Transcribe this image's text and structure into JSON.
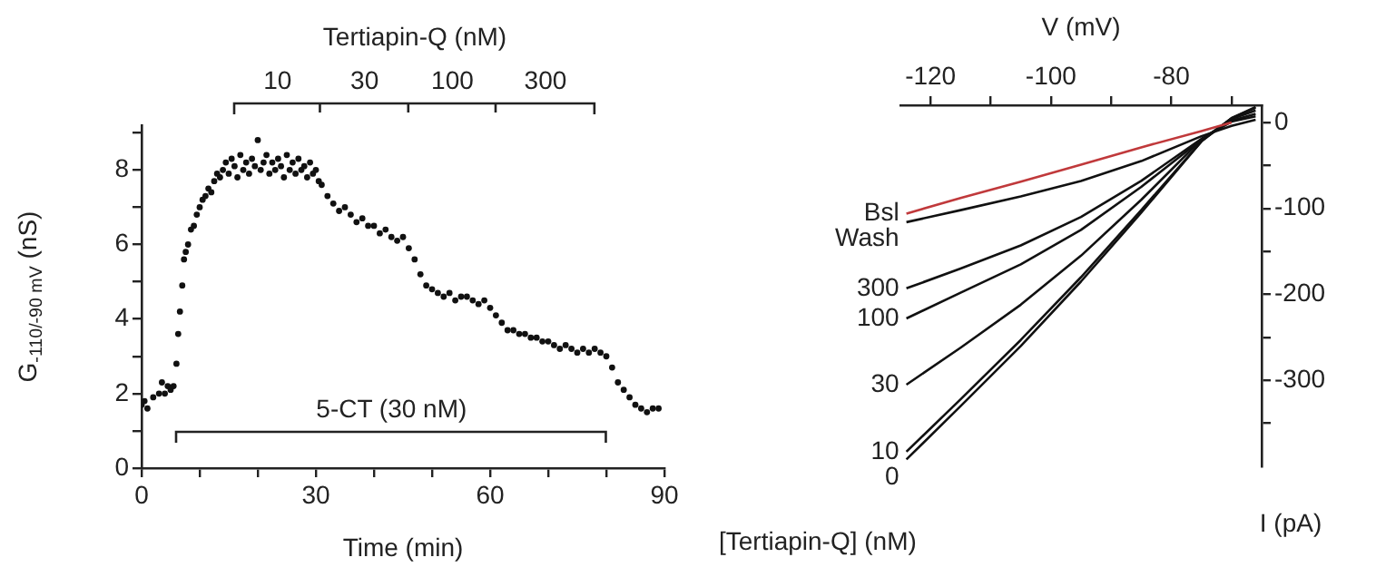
{
  "chart_data": [
    {
      "type": "scatter",
      "xlabel": "Time (min)",
      "ylabel": "G$_{-110/-90 mV}$ (nS)",
      "color": "#111111",
      "marker": "circle",
      "grid": false,
      "legend": false,
      "x": [
        0,
        0.5,
        1,
        2,
        3,
        3.5,
        4,
        4.5,
        5,
        5.5,
        6,
        6.3,
        6.6,
        7,
        7.3,
        7.6,
        8,
        8.5,
        9,
        9.5,
        10,
        10.5,
        11,
        11.5,
        12,
        12.5,
        13,
        13.5,
        14,
        14.5,
        15,
        15.5,
        16,
        16.5,
        17,
        17.5,
        18,
        18.5,
        19,
        19.5,
        20,
        20.5,
        21,
        21.5,
        22,
        22.5,
        23,
        23.5,
        24,
        24.5,
        25,
        25.5,
        26,
        26.5,
        27,
        27.5,
        28,
        28.5,
        29,
        29.5,
        30,
        30.5,
        31,
        32,
        33,
        34,
        35,
        36,
        37,
        38,
        39,
        40,
        41,
        42,
        43,
        44,
        45,
        46,
        47,
        48,
        49,
        50,
        51,
        52,
        53,
        54,
        55,
        56,
        57,
        58,
        59,
        60,
        61,
        62,
        63,
        64,
        65,
        66,
        67,
        68,
        69,
        70,
        71,
        72,
        73,
        74,
        75,
        76,
        77,
        78,
        79,
        80,
        81,
        82,
        83,
        84,
        85,
        86,
        87,
        88,
        89
      ],
      "values": [
        1.7,
        1.8,
        1.6,
        1.9,
        2.0,
        2.3,
        2.0,
        2.2,
        2.1,
        2.2,
        2.8,
        3.6,
        4.2,
        4.9,
        5.6,
        5.8,
        6.0,
        6.4,
        6.5,
        6.8,
        7.0,
        7.2,
        7.3,
        7.5,
        7.4,
        7.7,
        7.9,
        7.8,
        8.0,
        8.2,
        7.9,
        8.3,
        8.1,
        7.8,
        8.4,
        8.0,
        8.2,
        7.9,
        8.3,
        8.1,
        8.8,
        8.0,
        8.2,
        8.4,
        7.9,
        8.2,
        8.0,
        8.3,
        8.1,
        7.8,
        8.4,
        8.0,
        8.2,
        7.9,
        8.3,
        8.0,
        8.1,
        7.8,
        8.2,
        7.9,
        8.0,
        7.7,
        7.6,
        7.3,
        7.1,
        6.9,
        7.0,
        6.8,
        6.6,
        6.7,
        6.5,
        6.5,
        6.3,
        6.4,
        6.2,
        6.1,
        6.2,
        5.9,
        5.6,
        5.2,
        4.9,
        4.8,
        4.7,
        4.6,
        4.7,
        4.5,
        4.6,
        4.6,
        4.5,
        4.4,
        4.5,
        4.3,
        4.1,
        3.9,
        3.7,
        3.7,
        3.6,
        3.6,
        3.5,
        3.5,
        3.4,
        3.4,
        3.3,
        3.2,
        3.3,
        3.2,
        3.1,
        3.2,
        3.1,
        3.2,
        3.1,
        3.0,
        2.7,
        2.3,
        2.1,
        1.9,
        1.7,
        1.6,
        1.5,
        1.6,
        1.6
      ],
      "xlim": [
        0,
        90
      ],
      "xticks": [
        0,
        {
          "value": 10,
          "label": null
        },
        {
          "value": 20,
          "label": null
        },
        30,
        {
          "value": 40,
          "label": null
        },
        {
          "value": 50,
          "label": null
        },
        60,
        {
          "value": 70,
          "label": null
        },
        {
          "value": 80,
          "label": null
        },
        90
      ],
      "ylim": [
        0,
        9.2
      ],
      "yticks": [
        0,
        {
          "value": 1,
          "label": null
        },
        2,
        {
          "value": 3,
          "label": null
        },
        4,
        {
          "value": 5,
          "label": null
        },
        6,
        {
          "value": 7,
          "label": null
        },
        8,
        {
          "value": 9,
          "label": null
        }
      ],
      "annotations": [
        "Tertiapin-Q (nM)",
        "10",
        "30",
        "100",
        "300",
        "5-CT (30 nM)"
      ]
    },
    {
      "type": "line",
      "xlabel": "V (mV)",
      "ylabel": "I (pA)",
      "grid": false,
      "legend": false,
      "x": [
        -124,
        -115,
        -105,
        -95,
        -85,
        -75,
        -70,
        -66
      ],
      "xlim": [
        -125,
        -65
      ],
      "xticks": [
        -120,
        {
          "value": -110,
          "label": null
        },
        -100,
        {
          "value": -90,
          "label": null
        },
        -80,
        {
          "value": -70,
          "label": null
        }
      ],
      "ylim": [
        -400,
        20
      ],
      "yticks": [
        0,
        {
          "value": -50,
          "label": null
        },
        -100,
        {
          "value": -150,
          "label": null
        },
        -200,
        {
          "value": -250,
          "label": null
        },
        -300,
        {
          "value": -350,
          "label": null
        }
      ],
      "series": [
        {
          "name": "Bsl",
          "color": "#c0393b",
          "values": [
            -106,
            -88,
            -69,
            -49,
            -29,
            -10,
            0,
            null
          ]
        },
        {
          "name": "Wash",
          "color": "#111111",
          "values": [
            -116,
            -102,
            -86,
            -68,
            -45,
            -16,
            -4,
            3
          ]
        },
        {
          "name": "300",
          "color": "#111111",
          "values": [
            -193,
            -170,
            -143,
            -110,
            -68,
            -19,
            1,
            7
          ]
        },
        {
          "name": "100",
          "color": "#111111",
          "values": [
            -228,
            -198,
            -165,
            -125,
            -75,
            -20,
            2,
            10
          ]
        },
        {
          "name": "30",
          "color": "#111111",
          "values": [
            -305,
            -262,
            -212,
            -155,
            -90,
            -20,
            4,
            14
          ]
        },
        {
          "name": "10",
          "color": "#111111",
          "values": [
            -383,
            -322,
            -253,
            -180,
            -102,
            -22,
            5,
            17
          ]
        },
        {
          "name": "0",
          "color": "#111111",
          "values": [
            -392,
            -330,
            -260,
            -185,
            -105,
            -22,
            5,
            18
          ]
        }
      ],
      "annotations": [
        "[Tertiapin-Q] (nM)"
      ]
    }
  ]
}
